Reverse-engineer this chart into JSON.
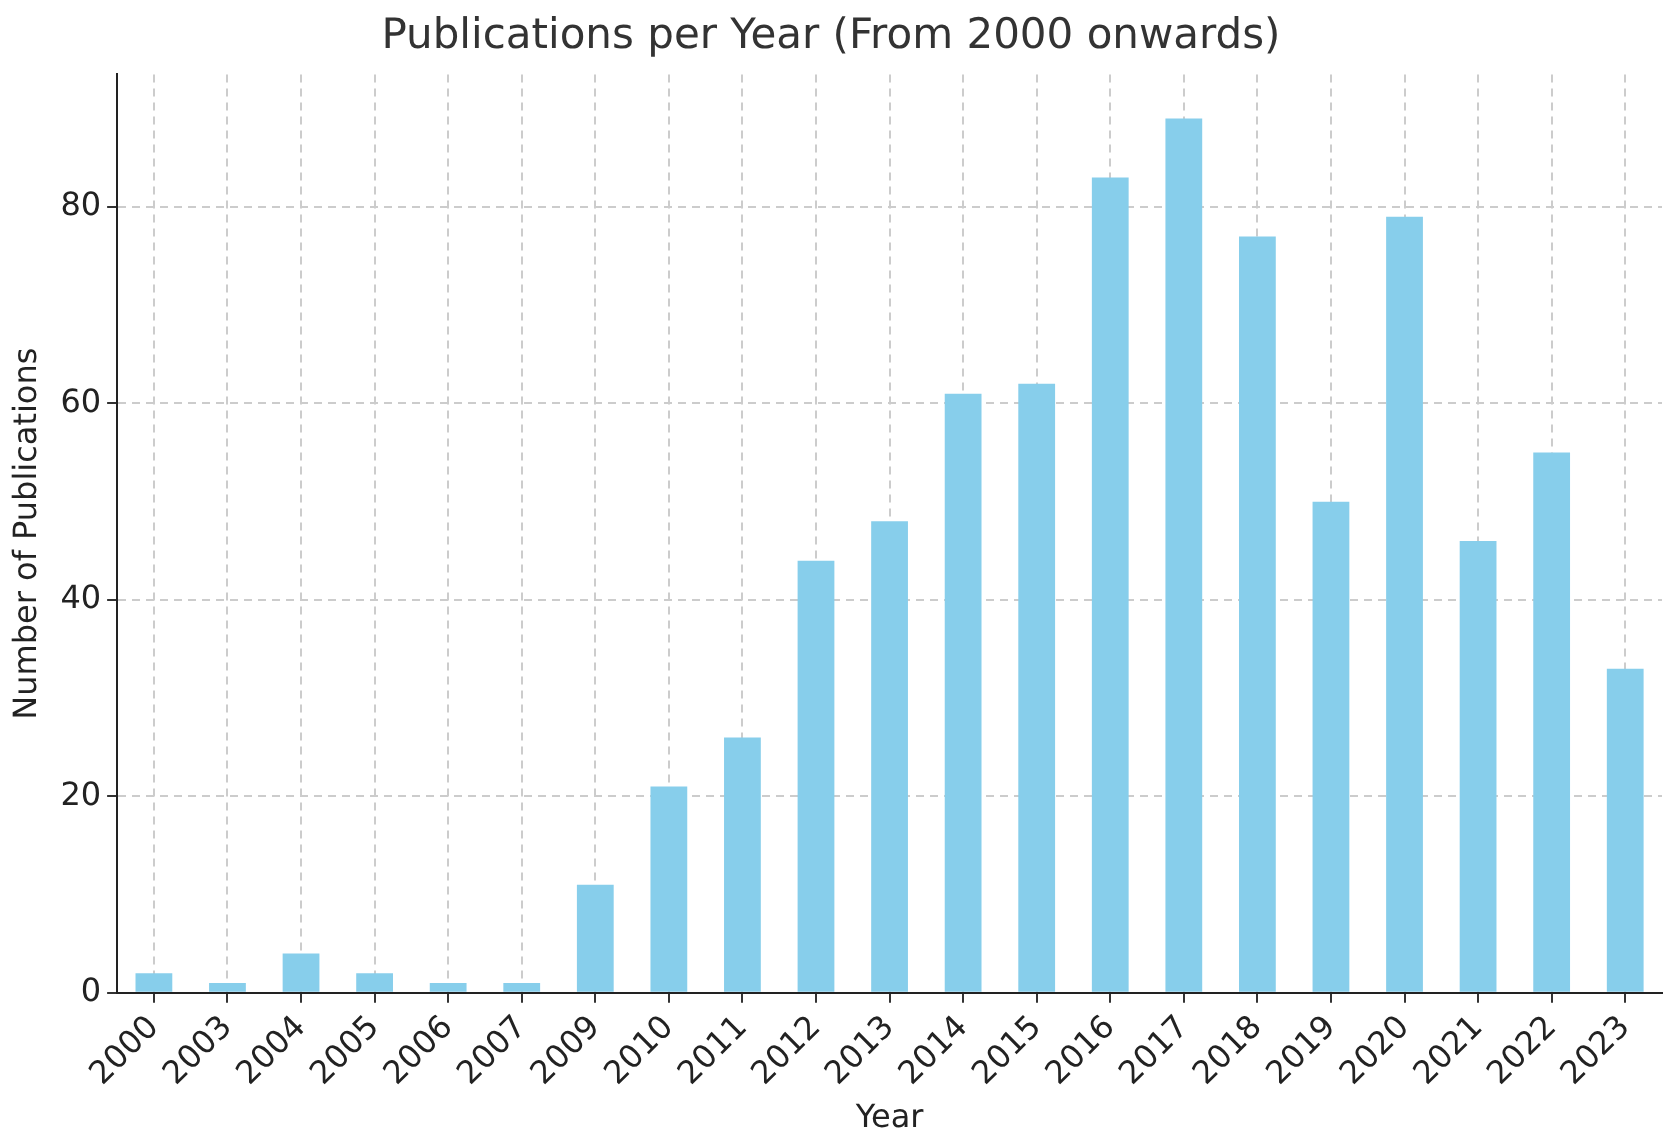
{
  "chart_data": {
    "type": "bar",
    "title": "Publications per Year (From 2000 onwards)",
    "xlabel": "Year",
    "ylabel": "Number of Publications",
    "categories": [
      "2000",
      "2003",
      "2004",
      "2005",
      "2006",
      "2007",
      "2009",
      "2010",
      "2011",
      "2012",
      "2013",
      "2014",
      "2015",
      "2016",
      "2017",
      "2018",
      "2019",
      "2020",
      "2021",
      "2022",
      "2023"
    ],
    "values": [
      2,
      1,
      4,
      2,
      1,
      1,
      11,
      21,
      26,
      44,
      48,
      61,
      62,
      83,
      89,
      77,
      50,
      79,
      46,
      55,
      33
    ],
    "color": "#87ceeb",
    "ylim": [
      0,
      93.5
    ],
    "yticks": [
      0,
      20,
      40,
      60,
      80
    ],
    "grid": true,
    "legend": false
  }
}
